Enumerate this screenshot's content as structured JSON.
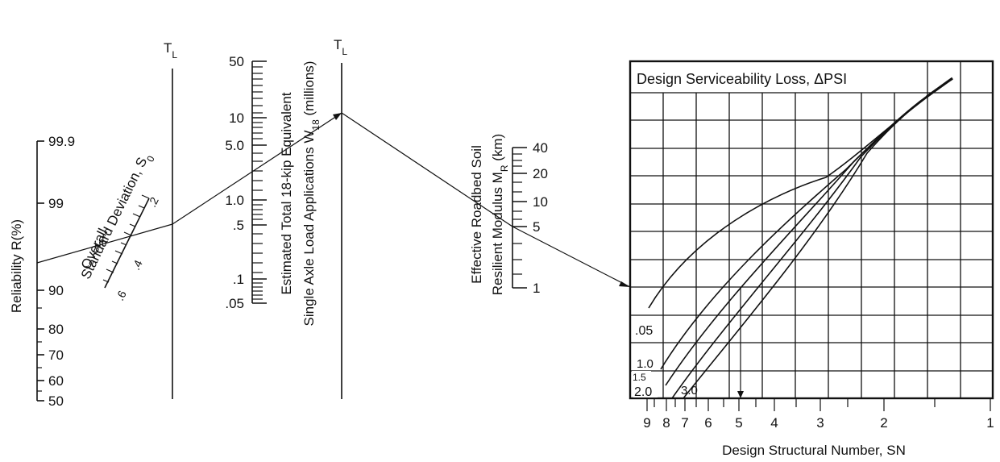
{
  "turning_line": {
    "label_main": "T",
    "label_sub": "L"
  },
  "reliability": {
    "title": "Reliability R(%)",
    "ticks": [
      "99.9",
      "99",
      "90",
      "80",
      "70",
      "60",
      "50"
    ]
  },
  "std_dev": {
    "title_line1": "Overall",
    "title_line2": "Standard Deviation, S",
    "title_sub": "0",
    "ticks": [
      ".2",
      ".4",
      ".6"
    ]
  },
  "w18": {
    "title_line1": "Estimated Total 18-kip Equivalent",
    "title_line2_pre": "Single Axle Load Applications W",
    "title_line2_sub": "18",
    "title_line2_post": " (millions)",
    "ticks": [
      "50",
      "10",
      "5.0",
      "1.0",
      ".5",
      ".1",
      ".05"
    ]
  },
  "mr": {
    "title_line1": "Effective Roadbed Soil",
    "title_line2_pre": "Resilient Modulus M",
    "title_line2_sub": "R",
    "title_line2_post": " (km)",
    "ticks": [
      "40",
      "20",
      "10",
      "5",
      "1"
    ]
  },
  "chart": {
    "title": "Design Serviceability Loss, ΔPSI",
    "xlabel": "Design Structural Number, SN",
    "x_ticks": [
      "9",
      "8",
      "7",
      "6",
      "5",
      "4",
      "3",
      "2",
      "1"
    ],
    "curve_labels": [
      ".05",
      "1.0",
      "1.5",
      "2.0",
      "3.0"
    ]
  }
}
